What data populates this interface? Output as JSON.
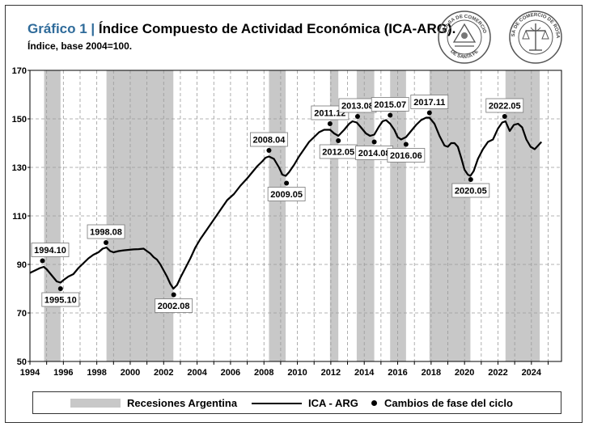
{
  "header": {
    "title_number": "Gráfico 1 |",
    "title_text": "Índice Compuesto de Actividad Económica (ICA-ARG).",
    "subtitle": "Índice, base 2004=100."
  },
  "logos": [
    {
      "name": "bolsa-de-comercio-de-santa-fe",
      "text_top": "BOLSA DE COMERCIO",
      "text_bottom": "DE SANTA FE"
    },
    {
      "name": "bolsa-de-comercio-de-rosario",
      "text_top": "BOLSA DE COMERCIO DE ROSARIO",
      "text_bottom": ""
    }
  ],
  "legend": {
    "recessions": "Recesiones Argentina",
    "series": "ICA - ARG",
    "turning_points": "Cambios de fase del ciclo"
  },
  "colors": {
    "recession": "#c8c8c8",
    "line": "#000000",
    "title_accent": "#2f6b9a",
    "grid": "#9a9a9a"
  },
  "chart_data": {
    "type": "line",
    "title": "Índice Compuesto de Actividad Económica (ICA-ARG).",
    "subtitle": "Índice, base 2004=100.",
    "xlabel": "",
    "ylabel": "",
    "xlim": [
      1994,
      2025.8
    ],
    "ylim": [
      50,
      170
    ],
    "yticks": [
      50,
      70,
      90,
      110,
      130,
      150,
      170
    ],
    "xticks": [
      1994,
      1996,
      1998,
      2000,
      2002,
      2004,
      2006,
      2008,
      2010,
      2012,
      2014,
      2016,
      2018,
      2020,
      2022,
      2024
    ],
    "grid": true,
    "legend_position": "bottom",
    "recessions": [
      [
        1994.85,
        1995.83
      ],
      [
        1998.58,
        2002.58
      ],
      [
        2008.3,
        2009.3
      ],
      [
        2011.95,
        2012.45
      ],
      [
        2013.55,
        2014.6
      ],
      [
        2015.55,
        2016.5
      ],
      [
        2017.9,
        2020.35
      ],
      [
        2022.45,
        2024.5
      ]
    ],
    "series": [
      {
        "name": "ICA - ARG",
        "x": [
          1994.0,
          1994.3,
          1994.6,
          1994.83,
          1995.0,
          1995.3,
          1995.6,
          1995.83,
          1996.0,
          1996.3,
          1996.6,
          1996.9,
          1997.2,
          1997.5,
          1997.8,
          1998.1,
          1998.35,
          1998.58,
          1998.8,
          1999.0,
          1999.3,
          1999.6,
          1999.9,
          2000.2,
          2000.5,
          2000.8,
          2001.0,
          2001.2,
          2001.4,
          2001.6,
          2001.8,
          2002.0,
          2002.2,
          2002.4,
          2002.58,
          2002.8,
          2003.0,
          2003.3,
          2003.6,
          2003.9,
          2004.2,
          2004.6,
          2005.0,
          2005.4,
          2005.8,
          2006.2,
          2006.6,
          2007.0,
          2007.3,
          2007.6,
          2007.9,
          2008.1,
          2008.3,
          2008.6,
          2008.9,
          2009.1,
          2009.3,
          2009.5,
          2009.8,
          2010.1,
          2010.4,
          2010.7,
          2011.0,
          2011.3,
          2011.6,
          2011.95,
          2012.2,
          2012.45,
          2012.8,
          2013.1,
          2013.3,
          2013.55,
          2013.8,
          2014.1,
          2014.35,
          2014.6,
          2014.85,
          2015.1,
          2015.3,
          2015.55,
          2015.8,
          2016.0,
          2016.2,
          2016.5,
          2016.8,
          2017.1,
          2017.4,
          2017.7,
          2017.9,
          2018.2,
          2018.5,
          2018.8,
          2019.0,
          2019.2,
          2019.4,
          2019.6,
          2019.8,
          2020.0,
          2020.2,
          2020.35,
          2020.55,
          2020.8,
          2021.1,
          2021.4,
          2021.7,
          2022.0,
          2022.25,
          2022.45,
          2022.7,
          2022.95,
          2023.2,
          2023.45,
          2023.7,
          2023.95,
          2024.2,
          2024.4,
          2024.6
        ],
        "values": [
          86.5,
          87.5,
          88.5,
          89.0,
          88.0,
          85.5,
          83.0,
          82.5,
          83.5,
          85.0,
          86.0,
          88.5,
          90.5,
          92.5,
          94.0,
          95.0,
          96.5,
          97.0,
          95.5,
          95.0,
          95.5,
          95.8,
          96.0,
          96.2,
          96.3,
          96.5,
          95.5,
          94.5,
          93.0,
          92.0,
          90.0,
          87.5,
          85.0,
          82.0,
          80.0,
          81.5,
          84.5,
          88.5,
          92.5,
          97.0,
          100.5,
          104.5,
          108.5,
          112.5,
          116.5,
          119.0,
          122.5,
          125.5,
          128.0,
          130.5,
          132.5,
          134.0,
          134.5,
          133.5,
          130.0,
          127.0,
          126.5,
          128.0,
          131.0,
          134.5,
          137.5,
          140.5,
          142.5,
          144.5,
          145.5,
          145.5,
          144.0,
          143.0,
          145.5,
          148.0,
          149.0,
          148.5,
          146.5,
          144.0,
          143.0,
          143.5,
          146.5,
          149.0,
          149.5,
          148.0,
          145.5,
          142.5,
          141.5,
          142.5,
          145.0,
          147.5,
          149.5,
          150.5,
          150.5,
          148.0,
          143.0,
          139.0,
          138.5,
          140.0,
          140.0,
          138.5,
          134.0,
          129.0,
          127.0,
          126.5,
          128.5,
          133.5,
          137.5,
          140.5,
          141.5,
          146.0,
          148.5,
          149.0,
          145.0,
          147.5,
          148.0,
          146.5,
          141.5,
          138.5,
          137.5,
          139.0,
          140.5
        ]
      }
    ],
    "turning_points": [
      {
        "label": "1994.10",
        "x": 1994.75,
        "y": 91.5,
        "kind": "peak"
      },
      {
        "label": "1995.10",
        "x": 1995.83,
        "y": 80.0,
        "kind": "trough"
      },
      {
        "label": "1998.08",
        "x": 1998.55,
        "y": 99.0,
        "kind": "peak"
      },
      {
        "label": "2002.08",
        "x": 2002.6,
        "y": 77.5,
        "kind": "trough"
      },
      {
        "label": "2008.04",
        "x": 2008.3,
        "y": 137.0,
        "kind": "peak"
      },
      {
        "label": "2009.05",
        "x": 2009.35,
        "y": 123.5,
        "kind": "trough"
      },
      {
        "label": "2011.12",
        "x": 2011.95,
        "y": 148.0,
        "kind": "peak"
      },
      {
        "label": "2012.05",
        "x": 2012.45,
        "y": 141.0,
        "kind": "trough"
      },
      {
        "label": "2013.08",
        "x": 2013.6,
        "y": 151.0,
        "kind": "peak"
      },
      {
        "label": "2014.08",
        "x": 2014.6,
        "y": 140.5,
        "kind": "trough"
      },
      {
        "label": "2015.07",
        "x": 2015.55,
        "y": 151.5,
        "kind": "peak"
      },
      {
        "label": "2016.06",
        "x": 2016.5,
        "y": 139.5,
        "kind": "trough"
      },
      {
        "label": "2017.11",
        "x": 2017.9,
        "y": 152.5,
        "kind": "peak"
      },
      {
        "label": "2020.05",
        "x": 2020.37,
        "y": 125.0,
        "kind": "trough"
      },
      {
        "label": "2022.05",
        "x": 2022.4,
        "y": 151.0,
        "kind": "peak"
      }
    ]
  }
}
